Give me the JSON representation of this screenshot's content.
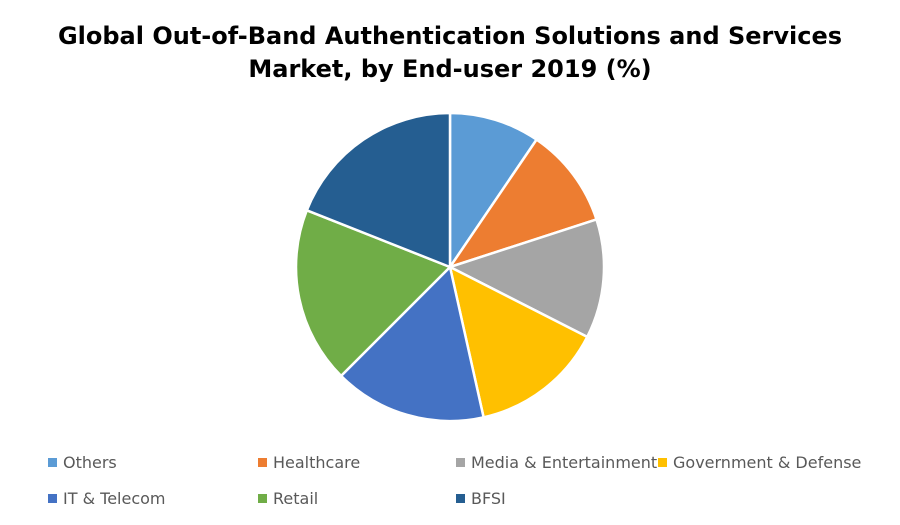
{
  "chart_data": {
    "type": "pie",
    "title": [
      "Global Out-of-Band Authentication Solutions and Services",
      "Market, by End-user 2019 (%)"
    ],
    "slices": [
      {
        "label": "Others",
        "value": 9.5,
        "color": "#5B9BD5"
      },
      {
        "label": "Healthcare",
        "value": 10.5,
        "color": "#ED7D31"
      },
      {
        "label": "Media & Entertainment",
        "value": 12.5,
        "color": "#A5A5A5"
      },
      {
        "label": "Government & Defense",
        "value": 14.0,
        "color": "#FFC000"
      },
      {
        "label": "IT & Telecom",
        "value": 16.0,
        "color": "#4472C4"
      },
      {
        "label": "Retail",
        "value": 18.5,
        "color": "#70AD47"
      },
      {
        "label": "BFSI",
        "value": 19.0,
        "color": "#255E91"
      }
    ],
    "legend_position": "bottom"
  }
}
